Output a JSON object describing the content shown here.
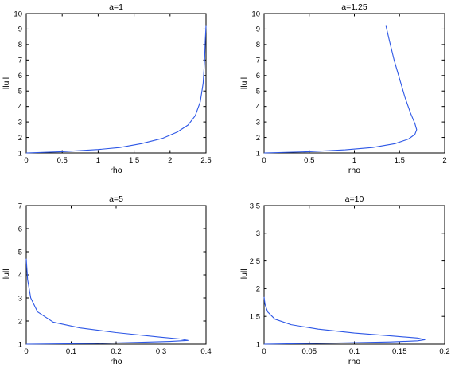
{
  "chart_data": [
    {
      "type": "line",
      "title": "a=1",
      "xlabel": "rho",
      "ylabel": "llull",
      "xlim": [
        0,
        2.5
      ],
      "ylim": [
        1,
        10
      ],
      "xticks": [
        0,
        0.5,
        1,
        1.5,
        2,
        2.5
      ],
      "yticks": [
        1,
        2,
        3,
        4,
        5,
        6,
        7,
        8,
        9,
        10
      ],
      "xtick_labels": [
        "0",
        "0.5",
        "1",
        "1.5",
        "2",
        "2.5"
      ],
      "ytick_labels": [
        "1",
        "2",
        "3",
        "4",
        "5",
        "6",
        "7",
        "8",
        "9",
        "10"
      ],
      "grid": false,
      "color": "#2d57e6",
      "x": [
        0,
        0.5,
        1.0,
        1.3,
        1.6,
        1.9,
        2.1,
        2.25,
        2.35,
        2.42,
        2.46,
        2.48,
        2.49,
        2.5
      ],
      "y": [
        1.0,
        1.08,
        1.22,
        1.35,
        1.6,
        1.95,
        2.35,
        2.8,
        3.4,
        4.3,
        5.5,
        7.0,
        8.3,
        9.2
      ]
    },
    {
      "type": "line",
      "title": "a=1.25",
      "xlabel": "rho",
      "ylabel": "llull",
      "xlim": [
        0,
        2
      ],
      "ylim": [
        1,
        10
      ],
      "xticks": [
        0,
        0.5,
        1,
        1.5,
        2
      ],
      "yticks": [
        1,
        2,
        3,
        4,
        5,
        6,
        7,
        8,
        9,
        10
      ],
      "xtick_labels": [
        "0",
        "0.5",
        "1",
        "1.5",
        "2"
      ],
      "ytick_labels": [
        "1",
        "2",
        "3",
        "4",
        "5",
        "6",
        "7",
        "8",
        "9",
        "10"
      ],
      "grid": false,
      "color": "#2d57e6",
      "x": [
        0,
        0.5,
        0.9,
        1.2,
        1.45,
        1.6,
        1.67,
        1.69,
        1.67,
        1.62,
        1.56,
        1.5,
        1.44,
        1.39,
        1.35
      ],
      "y": [
        1.0,
        1.08,
        1.2,
        1.35,
        1.6,
        1.9,
        2.2,
        2.5,
        2.9,
        3.6,
        4.6,
        5.8,
        7.0,
        8.2,
        9.2
      ]
    },
    {
      "type": "line",
      "title": "a=5",
      "xlabel": "rho",
      "ylabel": "llull",
      "xlim": [
        0,
        0.4
      ],
      "ylim": [
        1,
        7
      ],
      "xticks": [
        0,
        0.1,
        0.2,
        0.3,
        0.4
      ],
      "yticks": [
        1,
        2,
        3,
        4,
        5,
        6,
        7
      ],
      "xtick_labels": [
        "0",
        "0.1",
        "0.2",
        "0.3",
        "0.4"
      ],
      "ytick_labels": [
        "1",
        "2",
        "3",
        "4",
        "5",
        "6",
        "7"
      ],
      "grid": false,
      "color": "#2d57e6",
      "x": [
        0,
        0.15,
        0.25,
        0.32,
        0.36,
        0.345,
        0.3,
        0.2,
        0.12,
        0.06,
        0.025,
        0.01,
        0.003,
        0.0
      ],
      "y": [
        1.0,
        1.03,
        1.08,
        1.12,
        1.16,
        1.22,
        1.3,
        1.5,
        1.7,
        1.95,
        2.4,
        3.0,
        3.8,
        4.7
      ]
    },
    {
      "type": "line",
      "title": "a=10",
      "xlabel": "rho",
      "ylabel": "llull",
      "xlim": [
        0,
        0.2
      ],
      "ylim": [
        1,
        3.5
      ],
      "xticks": [
        0,
        0.05,
        0.1,
        0.15,
        0.2
      ],
      "yticks": [
        1,
        1.5,
        2,
        2.5,
        3,
        3.5
      ],
      "xtick_labels": [
        "0",
        "0.05",
        "0.1",
        "0.15",
        "0.2"
      ],
      "ytick_labels": [
        "1",
        "1.5",
        "2",
        "2.5",
        "3",
        "3.5"
      ],
      "grid": false,
      "color": "#2d57e6",
      "x": [
        0,
        0.08,
        0.14,
        0.17,
        0.178,
        0.17,
        0.14,
        0.1,
        0.06,
        0.03,
        0.012,
        0.004,
        0.001,
        0.0
      ],
      "y": [
        1.0,
        1.02,
        1.04,
        1.06,
        1.08,
        1.11,
        1.15,
        1.2,
        1.27,
        1.35,
        1.45,
        1.58,
        1.72,
        1.85
      ]
    }
  ]
}
